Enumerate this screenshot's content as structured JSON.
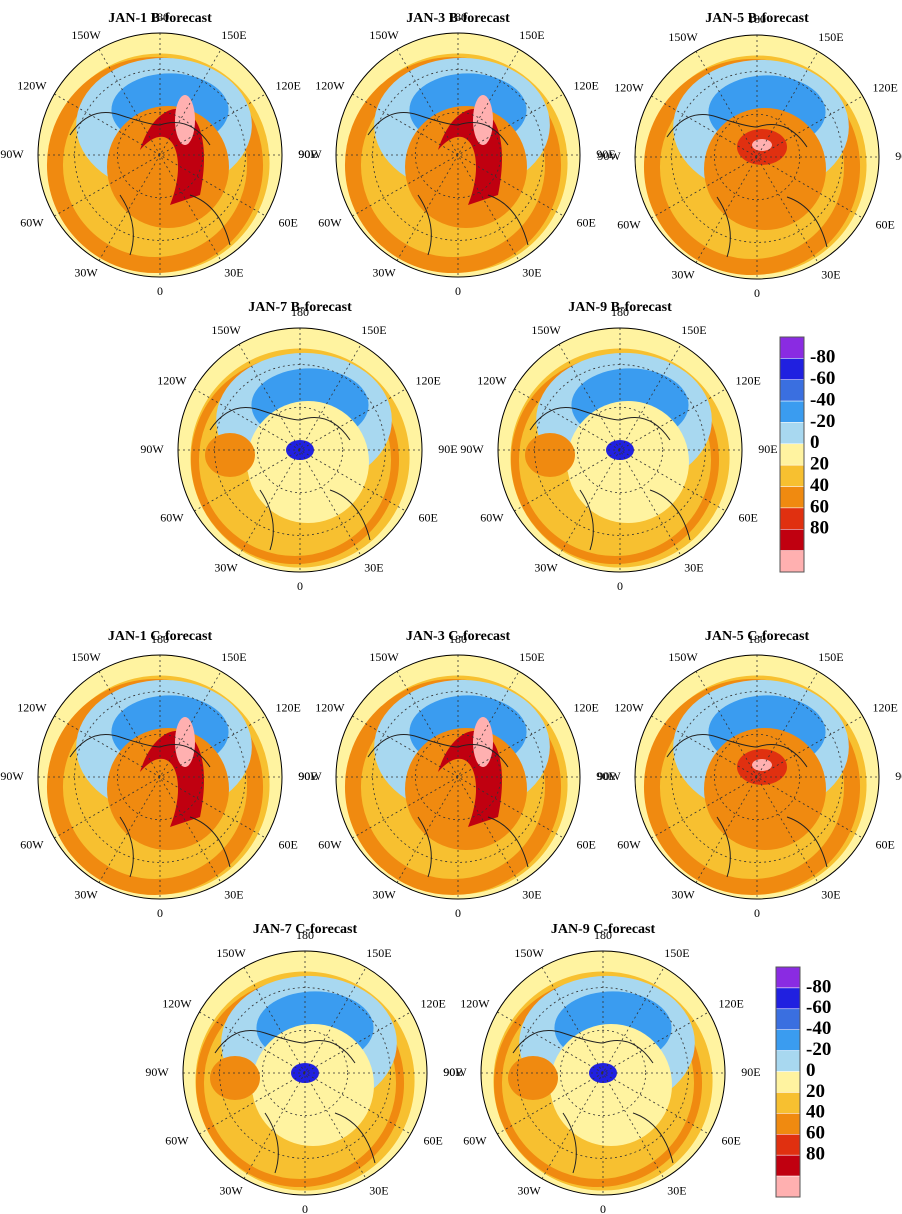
{
  "maps": [
    {
      "title": "JAN-1 B-forecast"
    },
    {
      "title": "JAN-3 B-forecast"
    },
    {
      "title": "JAN-5 B-forecast"
    },
    {
      "title": "JAN-7 B-forecast"
    },
    {
      "title": "JAN-9 B-forecast"
    },
    {
      "title": "JAN-1 C-forecast"
    },
    {
      "title": "JAN-3 C-forecast"
    },
    {
      "title": "JAN-5 C-forecast"
    },
    {
      "title": "JAN-7 C-forecast"
    },
    {
      "title": "JAN-9 C-forecast"
    }
  ],
  "longitude_labels": [
    "180",
    "150E",
    "120E",
    "90E",
    "60E",
    "30E",
    "0",
    "30W",
    "60W",
    "90W",
    "120W",
    "150W"
  ],
  "colorbar": {
    "labels": [
      "-80",
      "-60",
      "-40",
      "-20",
      "0",
      "20",
      "40",
      "60",
      "80"
    ],
    "colors": [
      "#8a2be2",
      "#2020e0",
      "#3a6fe0",
      "#3a9cf0",
      "#a8d8f0",
      "#fff3a0",
      "#f7c030",
      "#f08a10",
      "#e03010",
      "#c00010",
      "#ffb0b0"
    ]
  }
}
